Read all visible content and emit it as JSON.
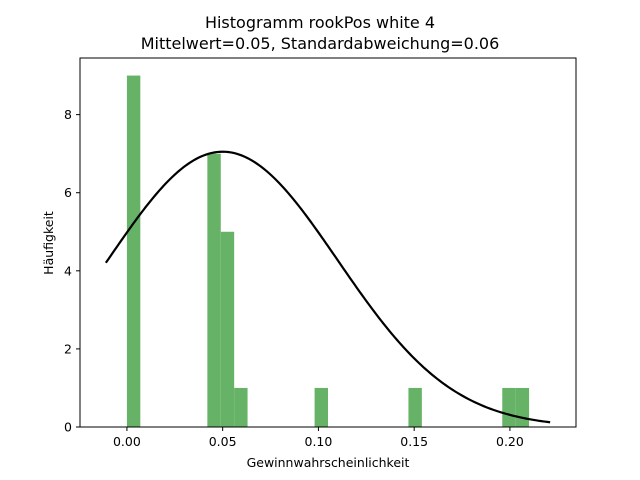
{
  "chart_data": {
    "type": "bar",
    "title": "Histogramm rookPos white 4",
    "subtitle": "Mittelwert=0.05, Standardabweichung=0.06",
    "xlabel": "Gewinnwahrscheinlichkeit",
    "ylabel": "Häufigkeit",
    "xlim": [
      -0.0245,
      0.2345
    ],
    "ylim": [
      0,
      9.45
    ],
    "x_ticks": [
      "0.00",
      "0.05",
      "0.10",
      "0.15",
      "0.20"
    ],
    "y_ticks": [
      "0",
      "2",
      "4",
      "6",
      "8"
    ],
    "grid": false,
    "bar_color": "#66b266",
    "curve_color": "#000000",
    "bins": [
      {
        "x0": 0.0,
        "x1": 0.007,
        "count": 9
      },
      {
        "x0": 0.042,
        "x1": 0.049,
        "count": 7
      },
      {
        "x0": 0.049,
        "x1": 0.056,
        "count": 5
      },
      {
        "x0": 0.056,
        "x1": 0.063,
        "count": 1
      },
      {
        "x0": 0.098,
        "x1": 0.105,
        "count": 1
      },
      {
        "x0": 0.147,
        "x1": 0.154,
        "count": 1
      },
      {
        "x0": 0.196,
        "x1": 0.203,
        "count": 1
      },
      {
        "x0": 0.203,
        "x1": 0.21,
        "count": 1
      }
    ],
    "normal_curve": {
      "mean": 0.05,
      "std": 0.06,
      "x_range": [
        -0.011,
        0.221
      ],
      "peak": 7.05
    }
  }
}
